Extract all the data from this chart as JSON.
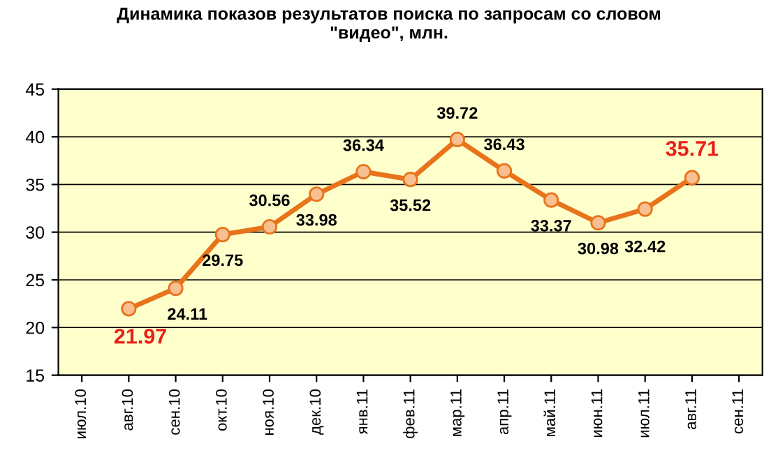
{
  "chart_data": {
    "type": "line",
    "title": "Динамика показов результатов поиска по запросам со словом\n\"видео\", млн.",
    "categories": [
      "июл.10",
      "авг.10",
      "сен.10",
      "окт.10",
      "ноя.10",
      "дек.10",
      "янв.11",
      "фев.11",
      "мар.11",
      "апр.11",
      "май.11",
      "июн.11",
      "июл.11",
      "авг.11",
      "сен.11"
    ],
    "series": [
      {
        "color": "#e8731a",
        "values": [
          null,
          21.97,
          24.11,
          29.75,
          30.56,
          33.98,
          36.34,
          35.52,
          39.72,
          36.43,
          33.37,
          30.98,
          32.42,
          35.71,
          null
        ]
      }
    ],
    "ylim": [
      15,
      45
    ],
    "yticks": [
      15,
      20,
      25,
      30,
      35,
      40,
      45
    ],
    "grid": "y",
    "marker": "circle",
    "line_style": "solid",
    "data_labels": true
  }
}
